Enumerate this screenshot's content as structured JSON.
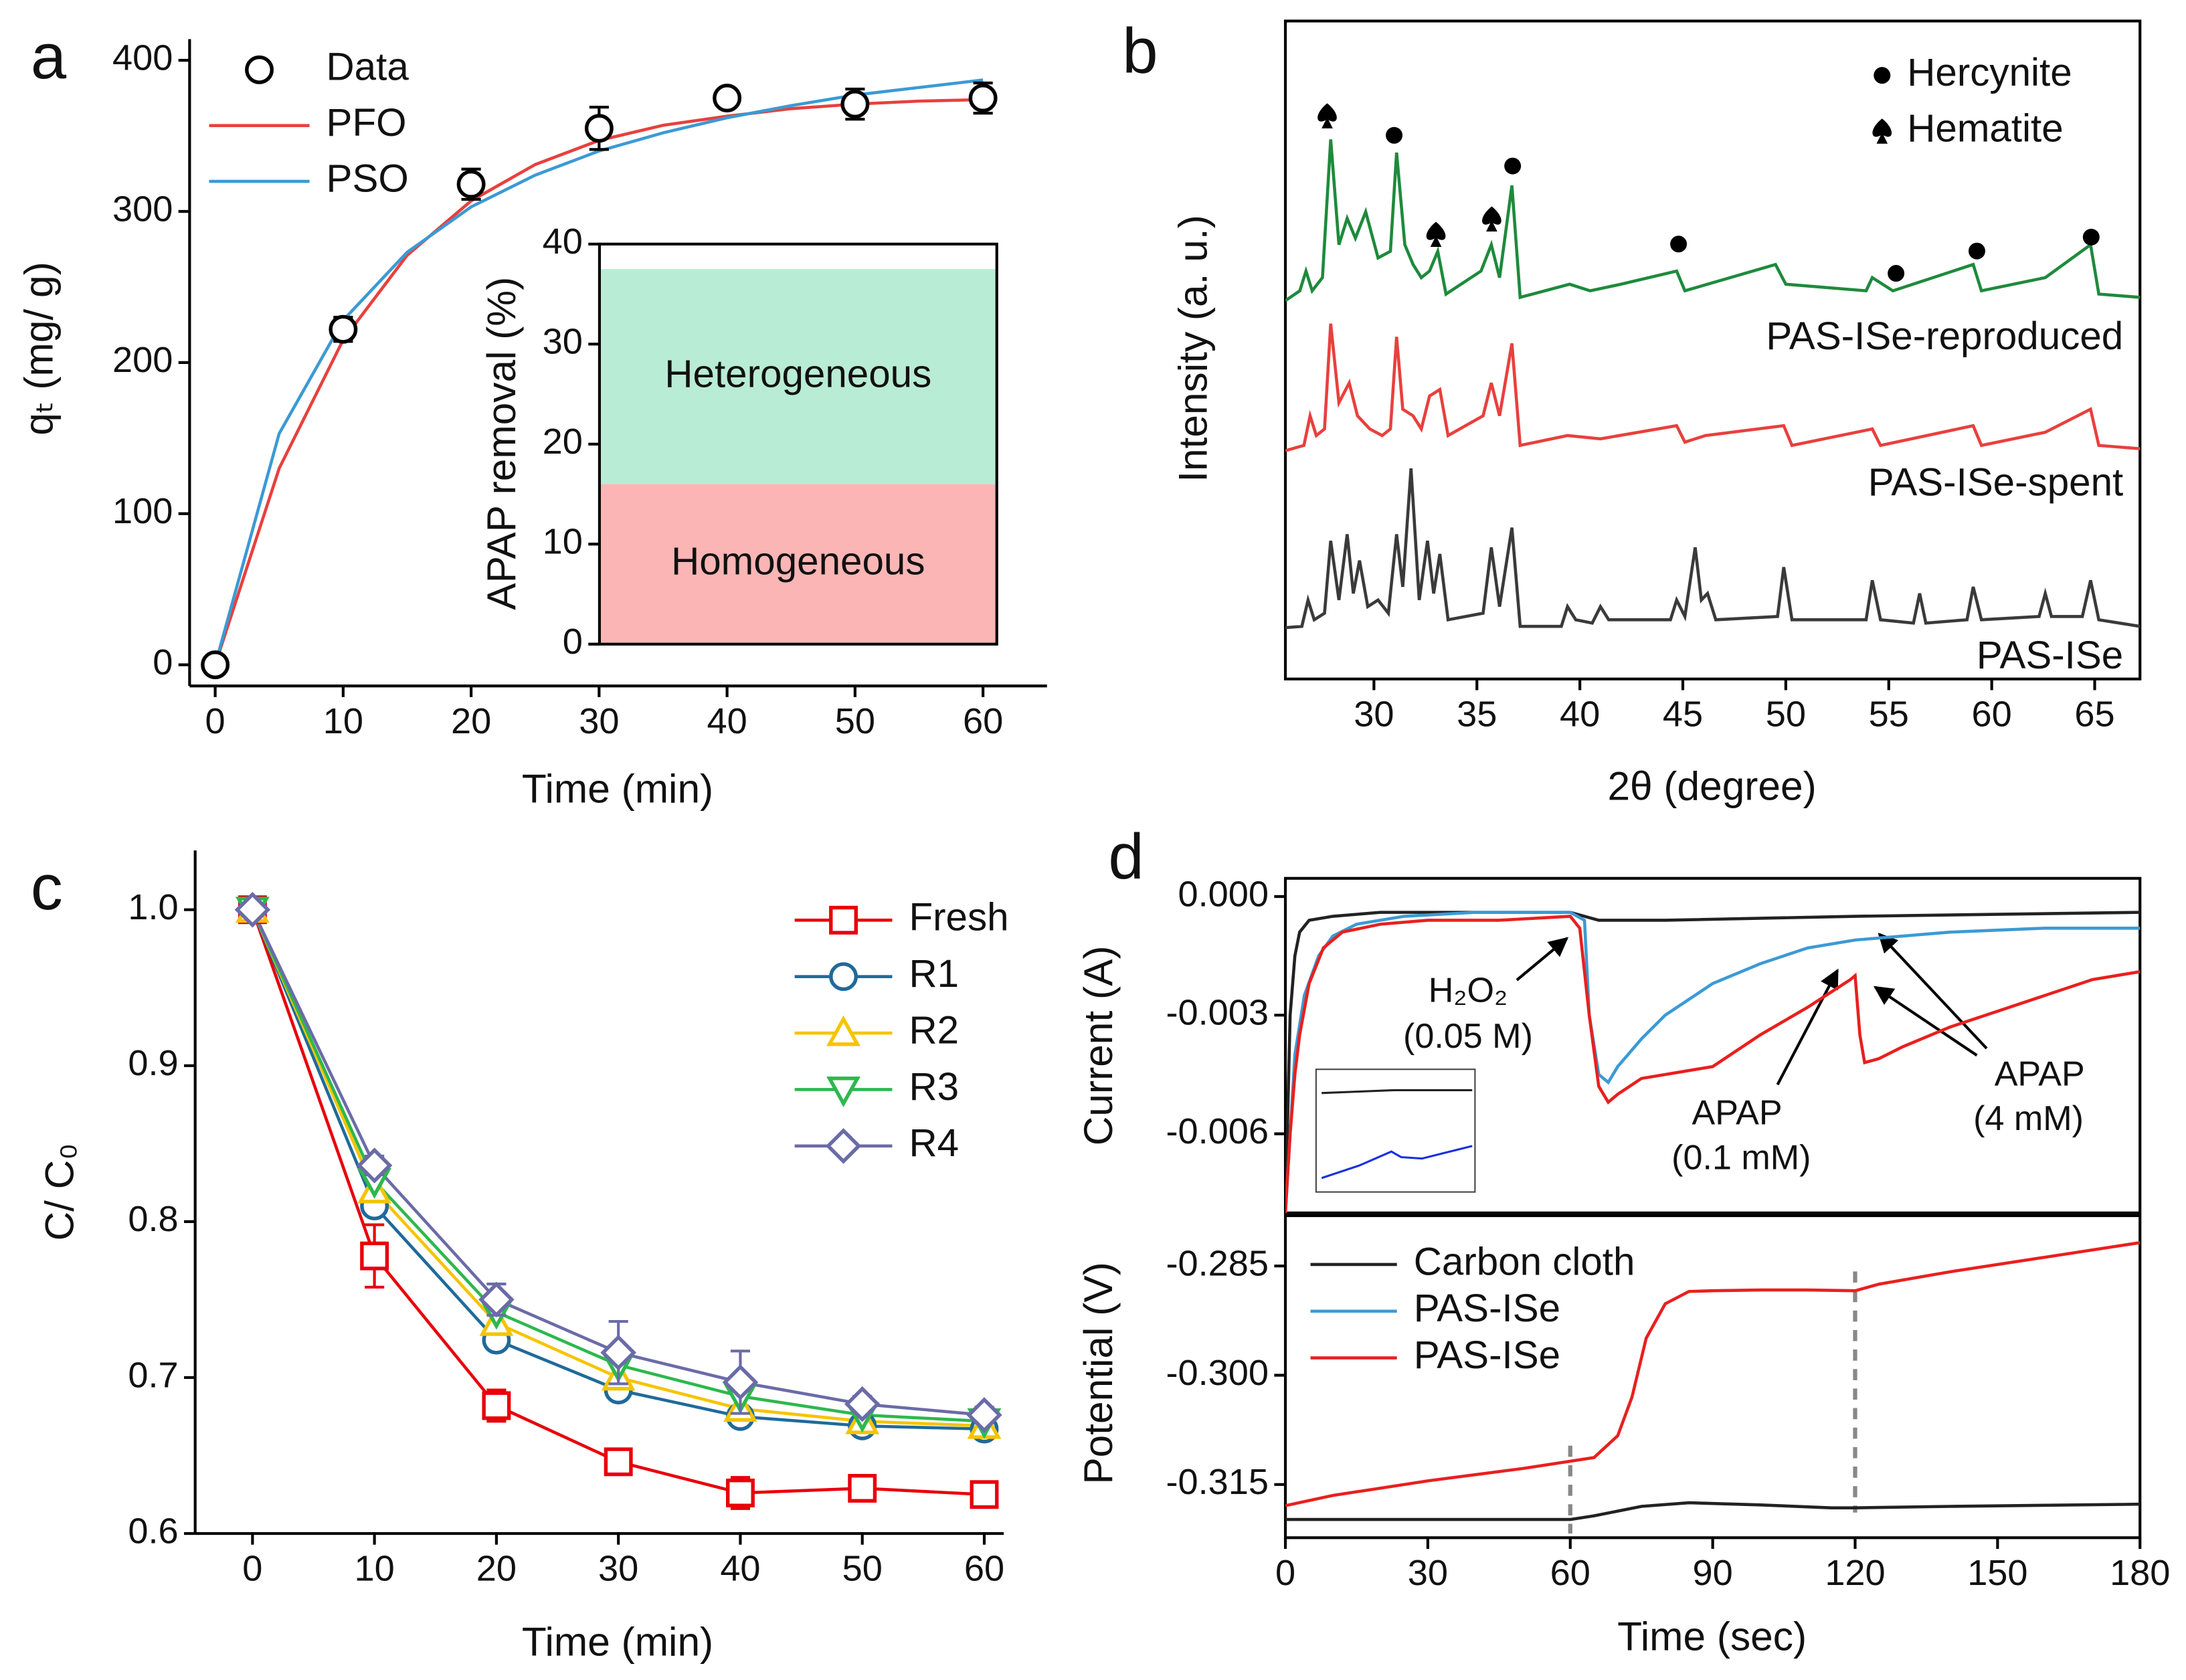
{
  "chart_data": [
    {
      "panel": "a",
      "type": "line",
      "xlabel": "Time (min)",
      "ylabel": "qₜ (mg/ g)",
      "xlim": [
        -2,
        65
      ],
      "ylim": [
        -14,
        414
      ],
      "xticks": [
        0,
        10,
        20,
        30,
        40,
        50,
        60
      ],
      "yticks": [
        0,
        100,
        200,
        300,
        400
      ],
      "series": [
        {
          "name": "Data",
          "type": "scatter",
          "marker": "circle",
          "color": "#000000",
          "x": [
            0,
            10,
            20,
            30,
            40,
            50,
            60
          ],
          "values": [
            0,
            222,
            318,
            355,
            375,
            371,
            375
          ],
          "errors": [
            3,
            8,
            10,
            14,
            6,
            10,
            10
          ]
        },
        {
          "name": "PFO",
          "type": "line",
          "color": "#e8403e",
          "x": [
            0,
            5,
            10,
            15,
            20,
            25,
            30,
            35,
            40,
            45,
            50,
            55,
            60
          ],
          "values": [
            0,
            130,
            215,
            271,
            307,
            331,
            347,
            357,
            363,
            368,
            371,
            373,
            374
          ]
        },
        {
          "name": "PSO",
          "type": "line",
          "color": "#3b9ad4",
          "x": [
            0,
            5,
            10,
            15,
            20,
            25,
            30,
            35,
            40,
            45,
            50,
            55,
            60
          ],
          "values": [
            0,
            153,
            228,
            273,
            303,
            324,
            340,
            352,
            362,
            370,
            377,
            382,
            387
          ]
        }
      ]
    },
    {
      "type": "bar",
      "stacked": true,
      "ylabel": "APAP removal (%)",
      "ylim": [
        0,
        40
      ],
      "yticks": [
        0,
        10,
        20,
        30,
        40
      ],
      "series": [
        {
          "name": "Homogeneous",
          "color": "#fbb5b5",
          "values": [
            16
          ]
        },
        {
          "name": "Heterogeneous",
          "color": "#b9ecd4",
          "values": [
            21.5
          ]
        }
      ]
    },
    {
      "panel": "b",
      "type": "line",
      "xlabel": "2θ (degree)",
      "ylabel": "Intensity (a. u.)",
      "xlim": [
        25.7,
        67.2
      ],
      "ylim": [
        0,
        100
      ],
      "xticks": [
        30,
        35,
        40,
        45,
        50,
        55,
        60,
        65
      ],
      "yticks": [],
      "legend": [
        "Hercynite",
        "Hematite"
      ],
      "series": [
        {
          "name": "PAS-ISe-reproduced",
          "type": "line",
          "color": "#1e8a3c",
          "x": [
            25.7,
            26.4,
            26.7,
            27.0,
            27.5,
            27.9,
            28.3,
            28.7,
            29.1,
            29.6,
            30.2,
            30.8,
            31.1,
            31.5,
            31.9,
            32.3,
            32.7,
            33.1,
            33.5,
            35.2,
            35.7,
            36.1,
            36.7,
            37.1,
            39.5,
            40.5,
            42,
            44.7,
            45.1,
            49.5,
            50,
            53.9,
            54.2,
            55.2,
            59.1,
            59.5,
            62.6,
            64.8,
            65.2,
            67.2
          ],
          "values": [
            57.5,
            59,
            62,
            59,
            61,
            82,
            66,
            70,
            67,
            71,
            64,
            65,
            80,
            66,
            63,
            61,
            62,
            65,
            58.5,
            62,
            66,
            61,
            75,
            58,
            60,
            59,
            60,
            62,
            59,
            63,
            60,
            59,
            61,
            59,
            63,
            59,
            61,
            66,
            58.5,
            58
          ]
        },
        {
          "name": "PAS-ISe-spent",
          "type": "line",
          "color": "#e8403e",
          "x": [
            25.7,
            26.6,
            26.9,
            27.2,
            27.6,
            27.9,
            28.3,
            28.8,
            29.2,
            29.8,
            30.4,
            30.8,
            31.1,
            31.4,
            31.9,
            32.3,
            32.7,
            33.2,
            33.6,
            35.3,
            35.7,
            36.1,
            36.7,
            37.1,
            39.4,
            41.0,
            44.7,
            45.1,
            46.1,
            49.9,
            50.3,
            54.2,
            54.6,
            59.1,
            59.5,
            62.6,
            64.8,
            65.2,
            67.2
          ],
          "values": [
            34.7,
            35.5,
            40,
            37,
            38,
            54,
            42,
            45,
            40,
            38,
            37,
            38,
            52,
            41,
            40,
            38,
            43,
            44,
            37,
            40,
            45,
            40,
            51,
            35.5,
            37,
            36.5,
            38.5,
            36,
            37,
            38.5,
            35.5,
            38,
            35.5,
            38.5,
            35.5,
            37.5,
            41,
            35.5,
            35
          ]
        },
        {
          "name": "PAS-ISe",
          "type": "line",
          "color": "#3a3a3a",
          "x": [
            25.7,
            26.5,
            26.8,
            27.1,
            27.6,
            27.9,
            28.3,
            28.7,
            29.0,
            29.3,
            29.7,
            30.2,
            30.7,
            31.1,
            31.4,
            31.8,
            32.2,
            32.6,
            32.9,
            33.2,
            33.6,
            35.3,
            35.7,
            36.1,
            36.7,
            37.1,
            39.1,
            39.4,
            39.8,
            40.6,
            41.0,
            41.4,
            44.4,
            44.7,
            45.1,
            45.6,
            45.9,
            46.2,
            46.6,
            49.6,
            49.9,
            50.3,
            53.9,
            54.2,
            54.6,
            56.2,
            56.5,
            56.8,
            58.8,
            59.1,
            59.5,
            62.3,
            62.6,
            62.9,
            64.4,
            64.8,
            65.2,
            67.2
          ],
          "values": [
            7.8,
            8,
            12,
            9,
            10,
            21,
            12,
            22,
            13,
            18,
            11,
            12,
            10,
            22,
            14,
            32,
            12,
            21,
            13,
            19,
            9,
            10,
            20,
            11,
            23,
            8,
            8,
            11,
            9,
            8.5,
            11,
            9,
            9,
            12,
            9.5,
            20,
            12,
            13,
            9,
            9.5,
            17,
            9,
            9,
            15,
            9,
            8.5,
            13,
            8.5,
            9,
            14,
            9,
            9.5,
            13,
            9.5,
            9.5,
            15,
            9,
            8
          ]
        }
      ]
    },
    {
      "panel": "c",
      "type": "line",
      "xlabel": "Time (min)",
      "ylabel": "C/ C₀",
      "xlim": [
        -4.7,
        61.6
      ],
      "ylim": [
        0.6,
        1.038
      ],
      "xticks": [
        0,
        10,
        20,
        30,
        40,
        50,
        60
      ],
      "yticks": [
        0.6,
        0.7,
        0.8,
        0.9,
        {
          "value": 1,
          "label": "1.0"
        }
      ],
      "series": [
        {
          "name": "Fresh",
          "type": "line",
          "marker": "square",
          "color": "#e8000b",
          "x": [
            0,
            10,
            20,
            30,
            40,
            50,
            60
          ],
          "values": [
            1,
            0.778,
            0.682,
            0.646,
            0.626,
            0.629,
            0.625
          ],
          "errors": [
            0,
            0.02,
            0.01,
            0.005,
            0.01,
            0.005,
            0.005
          ]
        },
        {
          "name": "R1",
          "type": "line",
          "marker": "circle",
          "color": "#1f6a9a",
          "x": [
            0,
            10,
            20,
            30,
            40,
            50,
            60
          ],
          "values": [
            1,
            0.81,
            0.724,
            0.692,
            0.675,
            0.669,
            0.667
          ]
        },
        {
          "name": "R2",
          "type": "line",
          "marker": "triangle",
          "color": "#f5c400",
          "x": [
            0,
            10,
            20,
            30,
            40,
            50,
            60
          ],
          "values": [
            1,
            0.82,
            0.735,
            0.7,
            0.68,
            0.672,
            0.669
          ]
        },
        {
          "name": "R3",
          "type": "line",
          "marker": "triangle-down",
          "color": "#2db84d",
          "x": [
            0,
            10,
            20,
            30,
            40,
            50,
            60
          ],
          "values": [
            1,
            0.826,
            0.742,
            0.708,
            0.688,
            0.676,
            0.672
          ]
        },
        {
          "name": "R4",
          "type": "line",
          "marker": "diamond",
          "color": "#6b6ba8",
          "x": [
            0,
            10,
            20,
            30,
            40,
            50,
            60
          ],
          "values": [
            1,
            0.836,
            0.75,
            0.716,
            0.697,
            0.683,
            0.676
          ],
          "errors": [
            0,
            0.006,
            0.01,
            0.02,
            0.02,
            0.005,
            0.005
          ]
        }
      ]
    },
    {
      "panel": "d",
      "type": "line",
      "ylabel": "Current (A)",
      "xlim": [
        0,
        180
      ],
      "ylim": [
        -0.008,
        0.00046
      ],
      "yticks": [
        -0.006,
        -0.003,
        {
          "value": 0,
          "label": "0.000"
        }
      ],
      "annotations": [
        "H₂O₂",
        "(0.05 M)",
        "APAP",
        "(0.1 mM)",
        "APAP",
        "(4 mM)"
      ],
      "series": [
        {
          "name": "Carbon cloth",
          "type": "line",
          "color": "#222222",
          "x": [
            0,
            1,
            2,
            3,
            5,
            10,
            20,
            60,
            63,
            66,
            80,
            120,
            180
          ],
          "values": [
            -0.008,
            -0.003,
            -0.0015,
            -0.0009,
            -0.0006,
            -0.0005,
            -0.0004,
            -0.0004,
            -0.0005,
            -0.0006,
            -0.0006,
            -0.0005,
            -0.0004
          ]
        },
        {
          "name": "PAS-ISe",
          "type": "line",
          "color": "#3b9ad4",
          "x": [
            0,
            1,
            2,
            4,
            7,
            10,
            15,
            25,
            40,
            60,
            63,
            64,
            66,
            68,
            70,
            75,
            80,
            90,
            100,
            110,
            120,
            140,
            160,
            180
          ],
          "values": [
            -0.008,
            -0.006,
            -0.004,
            -0.0025,
            -0.0015,
            -0.001,
            -0.0007,
            -0.0005,
            -0.0004,
            -0.0004,
            -0.0006,
            -0.003,
            -0.0045,
            -0.0047,
            -0.0043,
            -0.0036,
            -0.003,
            -0.0022,
            -0.0017,
            -0.0013,
            -0.0011,
            -0.0009,
            -0.0008,
            -0.0008
          ]
        },
        {
          "name": "PAS-ISe",
          "type": "line",
          "color": "#e8201e",
          "x": [
            0,
            1,
            2,
            3,
            5,
            8,
            12,
            20,
            30,
            45,
            60,
            62,
            64,
            66,
            68,
            70,
            75,
            80,
            90,
            100,
            110,
            119,
            120,
            121,
            122,
            125,
            130,
            140,
            150,
            160,
            170,
            180
          ],
          "values": [
            -0.008,
            -0.006,
            -0.0045,
            -0.0035,
            -0.0022,
            -0.0013,
            -0.0009,
            -0.0007,
            -0.0006,
            -0.0006,
            -0.0005,
            -0.0008,
            -0.003,
            -0.0048,
            -0.0052,
            -0.005,
            -0.0046,
            -0.0045,
            -0.0043,
            -0.0035,
            -0.0028,
            -0.0021,
            -0.002,
            -0.0035,
            -0.0042,
            -0.0041,
            -0.0038,
            -0.0033,
            -0.0029,
            -0.0025,
            -0.0021,
            -0.0019
          ]
        }
      ]
    },
    {
      "type": "line",
      "xlabel": "Time (sec)",
      "ylabel": "Potential (V)",
      "xlim": [
        0,
        180
      ],
      "ylim": [
        -0.3223,
        -0.2781
      ],
      "xticks": [
        0,
        30,
        60,
        90,
        120,
        150,
        180
      ],
      "yticks": [
        -0.315,
        {
          "value": -0.3,
          "label": "-0.300"
        },
        -0.285
      ],
      "markers_x": [
        60,
        120
      ],
      "series": [
        {
          "name": "Carbon cloth",
          "type": "line",
          "color": "#222222",
          "x": [
            0,
            60,
            65,
            75,
            85,
            100,
            115,
            120,
            140,
            180
          ],
          "values": [
            -0.3198,
            -0.3198,
            -0.3193,
            -0.318,
            -0.3175,
            -0.3178,
            -0.3182,
            -0.3182,
            -0.318,
            -0.3177
          ]
        },
        {
          "name": "PAS-ISe",
          "type": "line",
          "color": "#3b9ad4",
          "x": [],
          "values": []
        },
        {
          "name": "PAS-ISe",
          "type": "line",
          "color": "#e8201e",
          "x": [
            0,
            10,
            30,
            50,
            60,
            65,
            70,
            73,
            76,
            80,
            85,
            90,
            100,
            110,
            120,
            125,
            140,
            160,
            180
          ],
          "values": [
            -0.3179,
            -0.3165,
            -0.3145,
            -0.3128,
            -0.3118,
            -0.3113,
            -0.3083,
            -0.303,
            -0.2949,
            -0.2902,
            -0.2885,
            -0.2884,
            -0.2883,
            -0.2883,
            -0.2884,
            -0.2875,
            -0.2858,
            -0.2838,
            -0.2818
          ]
        }
      ]
    }
  ]
}
